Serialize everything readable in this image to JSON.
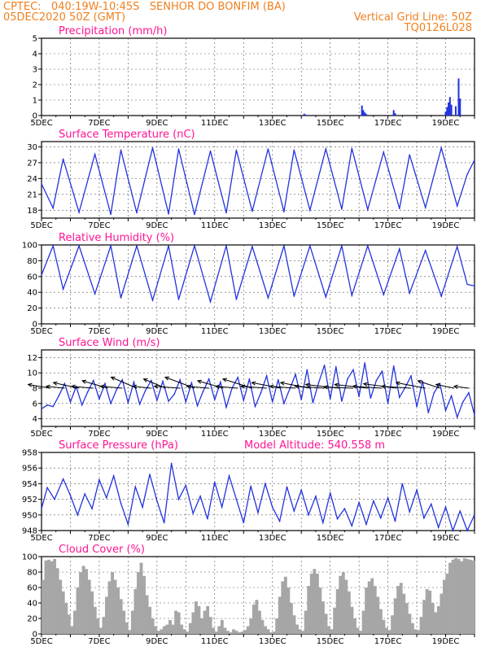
{
  "header": {
    "line1": "CPTEC:   040:19W-10:45S   SENHOR DO BONFIM (BA)",
    "line2_left": "05DEC2020 50Z (GMT)",
    "line2_right": "Vertical Grid Line: 50Z",
    "line3_right": "TQ0126L028"
  },
  "colors": {
    "header": "#f08020",
    "title": "#ff1493",
    "line": "#2233dd",
    "cloud": "#a6a6a6",
    "arrow": "#000000"
  },
  "chart_data": [
    {
      "type": "bar",
      "title": "Precipitation (mm/h)",
      "xlim": [
        5,
        20
      ],
      "ylim": [
        0,
        5
      ],
      "yticks": [
        0,
        1,
        2,
        3,
        4,
        5
      ],
      "xtick_labels": [
        "5DEC",
        "7DEC",
        "9DEC",
        "11DEC",
        "13DEC",
        "15DEC",
        "17DEC",
        "19DEC"
      ],
      "x": [
        5.2,
        6.5,
        8.0,
        10.5,
        12.0,
        14.1,
        14.15,
        16.1,
        16.15,
        16.2,
        16.25,
        17.2,
        17.25,
        19.0,
        19.05,
        19.1,
        19.15,
        19.2,
        19.35,
        19.45,
        19.5
      ],
      "values": [
        0.02,
        0.03,
        0.02,
        0.02,
        0.02,
        0.12,
        0.06,
        0.65,
        0.35,
        0.2,
        0.1,
        0.35,
        0.15,
        0.25,
        0.55,
        0.85,
        1.2,
        0.7,
        0.6,
        2.4,
        1.1
      ]
    },
    {
      "type": "line",
      "title": "Surface Temperature (nC)",
      "xlim": [
        5,
        20
      ],
      "ylim": [
        16.5,
        31
      ],
      "yticks": [
        18,
        21,
        24,
        27,
        30
      ],
      "xtick_labels": [
        "5DEC",
        "7DEC",
        "9DEC",
        "11DEC",
        "13DEC",
        "15DEC",
        "17DEC",
        "19DEC"
      ],
      "x": [
        5.0,
        5.4,
        5.75,
        6.3,
        6.85,
        7.4,
        7.75,
        8.3,
        8.85,
        9.4,
        9.75,
        10.3,
        10.85,
        11.4,
        11.75,
        12.3,
        12.85,
        13.4,
        13.75,
        14.3,
        14.85,
        15.4,
        15.75,
        16.3,
        16.85,
        17.4,
        17.75,
        18.3,
        18.85,
        19.4,
        19.75,
        20.0
      ],
      "values": [
        23.0,
        18.4,
        27.7,
        17.6,
        28.6,
        17.2,
        29.4,
        17.5,
        29.8,
        17.3,
        29.6,
        17.2,
        29.2,
        17.5,
        29.4,
        17.8,
        29.6,
        17.7,
        29.4,
        18.0,
        29.6,
        18.2,
        29.7,
        18.1,
        29.0,
        18.3,
        28.5,
        18.5,
        29.8,
        18.8,
        24.8,
        27.5
      ]
    },
    {
      "type": "line",
      "title": "Relative Humidity (%)",
      "xlim": [
        5,
        20
      ],
      "ylim": [
        0,
        100
      ],
      "yticks": [
        0,
        20,
        40,
        60,
        80,
        100
      ],
      "xtick_labels": [
        "5DEC",
        "7DEC",
        "9DEC",
        "11DEC",
        "13DEC",
        "15DEC",
        "17DEC",
        "19DEC"
      ],
      "x": [
        5.0,
        5.4,
        5.75,
        6.3,
        6.85,
        7.4,
        7.75,
        8.3,
        8.85,
        9.4,
        9.75,
        10.3,
        10.85,
        11.4,
        11.75,
        12.3,
        12.85,
        13.4,
        13.75,
        14.3,
        14.85,
        15.4,
        15.75,
        16.3,
        16.85,
        17.4,
        17.75,
        18.3,
        18.85,
        19.4,
        19.75,
        20.0
      ],
      "values": [
        62,
        99,
        44,
        99,
        38,
        99,
        33,
        99,
        30,
        99,
        31,
        99,
        28,
        99,
        31,
        98,
        33,
        99,
        35,
        99,
        34,
        99,
        36,
        99,
        37,
        95,
        39,
        93,
        35,
        98,
        50,
        48
      ]
    },
    {
      "type": "line",
      "title": "Surface Wind (m/s)",
      "xlim": [
        5,
        20
      ],
      "ylim": [
        3,
        13
      ],
      "yticks": [
        4,
        6,
        8,
        10,
        12
      ],
      "xtick_labels": [
        "5DEC",
        "7DEC",
        "9DEC",
        "11DEC",
        "13DEC",
        "15DEC",
        "17DEC",
        "19DEC"
      ],
      "x": [
        5.0,
        5.2,
        5.4,
        5.6,
        5.8,
        6.0,
        6.2,
        6.4,
        6.6,
        6.8,
        7.0,
        7.2,
        7.4,
        7.6,
        7.8,
        8.0,
        8.2,
        8.4,
        8.6,
        8.8,
        9.0,
        9.2,
        9.4,
        9.6,
        9.8,
        10.0,
        10.2,
        10.4,
        10.6,
        10.8,
        11.0,
        11.2,
        11.4,
        11.6,
        11.8,
        12.0,
        12.2,
        12.4,
        12.6,
        12.8,
        13.0,
        13.2,
        13.4,
        13.6,
        13.8,
        14.0,
        14.2,
        14.4,
        14.6,
        14.8,
        15.0,
        15.2,
        15.4,
        15.6,
        15.8,
        16.0,
        16.2,
        16.4,
        16.6,
        16.8,
        17.0,
        17.2,
        17.4,
        17.6,
        17.8,
        18.0,
        18.2,
        18.4,
        18.6,
        18.8,
        19.0,
        19.2,
        19.4,
        19.6,
        19.8,
        20.0
      ],
      "values": [
        5.3,
        5.8,
        5.6,
        7.0,
        8.6,
        6.2,
        8.2,
        5.8,
        7.5,
        9.0,
        6.6,
        8.6,
        6.0,
        7.8,
        9.1,
        6.1,
        8.8,
        5.9,
        7.7,
        9.0,
        6.4,
        8.9,
        6.3,
        7.2,
        9.1,
        6.2,
        8.7,
        5.7,
        7.6,
        9.2,
        6.5,
        8.8,
        5.5,
        8.0,
        9.4,
        6.4,
        9.2,
        5.6,
        7.4,
        9.6,
        6.2,
        9.1,
        6.0,
        7.9,
        9.8,
        6.5,
        10.4,
        6.1,
        8.7,
        11.0,
        6.6,
        10.8,
        6.3,
        9.2,
        10.4,
        6.9,
        11.3,
        6.7,
        9.0,
        10.2,
        6.0,
        10.9,
        6.8,
        8.1,
        9.6,
        5.6,
        8.9,
        4.8,
        7.4,
        8.6,
        5.1,
        7.0,
        4.2,
        6.2,
        7.4,
        4.5
      ],
      "vectors": {
        "x": [
          5.3,
          5.8,
          6.3,
          6.8,
          7.3,
          7.8,
          8.3,
          8.8,
          9.3,
          9.8,
          10.3,
          10.8,
          11.3,
          11.8,
          12.3,
          12.8,
          13.3,
          13.8,
          14.3,
          14.8,
          15.3,
          15.8,
          16.3,
          16.8,
          17.3,
          17.8,
          18.3,
          18.8,
          19.3,
          19.8
        ],
        "u": [
          -6,
          -5,
          -7,
          -6,
          -7,
          -6,
          -7,
          -5,
          -6,
          -7,
          -8,
          -6,
          -7,
          -6,
          -8,
          -7,
          -8,
          -7,
          -8,
          -8,
          -9,
          -8,
          -9,
          -8,
          -9,
          -8,
          -8,
          -6,
          -5,
          -4
        ],
        "v": [
          1,
          0.5,
          1.5,
          0.5,
          2,
          0.5,
          3,
          0.5,
          2.5,
          0.5,
          3,
          0.5,
          2,
          0.5,
          2.5,
          0.5,
          1.5,
          0.5,
          1.5,
          0.5,
          1,
          0.3,
          1,
          0.5,
          1.2,
          0.5,
          1.5,
          2,
          1,
          0.5
        ]
      }
    },
    {
      "type": "line",
      "title": "Surface Pressure (hPa)",
      "annotation": "Model Altitude: 540.558 m",
      "xlim": [
        5,
        20
      ],
      "ylim": [
        948,
        958
      ],
      "yticks": [
        948,
        950,
        952,
        954,
        956,
        958
      ],
      "xtick_labels": [
        "5DEC",
        "7DEC",
        "9DEC",
        "11DEC",
        "13DEC",
        "15DEC",
        "17DEC",
        "19DEC"
      ],
      "x": [
        5.0,
        5.2,
        5.45,
        5.75,
        6.0,
        6.25,
        6.5,
        6.75,
        7.0,
        7.25,
        7.5,
        7.75,
        8.0,
        8.25,
        8.5,
        8.75,
        9.0,
        9.25,
        9.5,
        9.75,
        10.0,
        10.25,
        10.5,
        10.75,
        11.0,
        11.25,
        11.5,
        11.75,
        12.0,
        12.25,
        12.5,
        12.75,
        13.0,
        13.25,
        13.5,
        13.75,
        14.0,
        14.25,
        14.5,
        14.75,
        15.0,
        15.25,
        15.5,
        15.75,
        16.0,
        16.25,
        16.5,
        16.75,
        17.0,
        17.25,
        17.5,
        17.75,
        18.0,
        18.25,
        18.5,
        18.75,
        19.0,
        19.25,
        19.5,
        19.75,
        20.0
      ],
      "values": [
        950.8,
        953.5,
        952.0,
        954.6,
        952.5,
        950.0,
        952.7,
        950.8,
        954.5,
        952.2,
        955.0,
        951.5,
        948.8,
        953.6,
        951.0,
        955.2,
        951.8,
        949.0,
        956.6,
        952.0,
        953.8,
        950.2,
        952.4,
        949.5,
        954.2,
        951.0,
        955.0,
        952.0,
        949.0,
        953.7,
        950.3,
        954.0,
        951.0,
        949.2,
        953.6,
        950.5,
        953.2,
        950.0,
        952.4,
        949.0,
        952.8,
        949.5,
        950.8,
        948.6,
        951.6,
        948.8,
        951.8,
        949.6,
        952.2,
        949.2,
        954.0,
        950.4,
        953.2,
        949.6,
        951.4,
        948.4,
        951.0,
        947.8,
        950.5,
        948.0,
        950.0
      ]
    },
    {
      "type": "bar",
      "title": "Cloud Cover (%)",
      "xlim": [
        5,
        20
      ],
      "ylim": [
        0,
        100
      ],
      "yticks": [
        0,
        20,
        40,
        60,
        80,
        100
      ],
      "xtick_labels": [
        "5DEC",
        "7DEC",
        "9DEC",
        "11DEC",
        "13DEC",
        "15DEC",
        "17DEC",
        "19DEC"
      ],
      "x": [
        5.0,
        5.1,
        5.2,
        5.3,
        5.4,
        5.5,
        5.6,
        5.7,
        5.8,
        5.9,
        6.0,
        6.1,
        6.2,
        6.3,
        6.4,
        6.5,
        6.6,
        6.7,
        6.8,
        6.9,
        7.0,
        7.1,
        7.2,
        7.3,
        7.4,
        7.5,
        7.6,
        7.7,
        7.8,
        7.9,
        8.0,
        8.1,
        8.2,
        8.3,
        8.4,
        8.5,
        8.6,
        8.7,
        8.8,
        8.9,
        9.0,
        9.1,
        9.2,
        9.3,
        9.4,
        9.5,
        9.6,
        9.7,
        9.8,
        9.9,
        10.0,
        10.1,
        10.2,
        10.3,
        10.4,
        10.5,
        10.6,
        10.7,
        10.8,
        10.9,
        11.0,
        11.1,
        11.2,
        11.3,
        11.4,
        11.5,
        11.6,
        11.7,
        11.8,
        11.9,
        12.0,
        12.1,
        12.2,
        12.3,
        12.4,
        12.5,
        12.6,
        12.7,
        12.8,
        12.9,
        13.0,
        13.1,
        13.2,
        13.3,
        13.4,
        13.5,
        13.6,
        13.7,
        13.8,
        13.9,
        14.0,
        14.1,
        14.2,
        14.3,
        14.4,
        14.5,
        14.6,
        14.7,
        14.8,
        14.9,
        15.0,
        15.1,
        15.2,
        15.3,
        15.4,
        15.5,
        15.6,
        15.7,
        15.8,
        15.9,
        16.0,
        16.1,
        16.2,
        16.3,
        16.4,
        16.5,
        16.6,
        16.7,
        16.8,
        16.9,
        17.0,
        17.1,
        17.2,
        17.3,
        17.4,
        17.5,
        17.6,
        17.7,
        17.8,
        17.9,
        18.0,
        18.1,
        18.2,
        18.3,
        18.4,
        18.5,
        18.6,
        18.7,
        18.8,
        18.9,
        19.0,
        19.1,
        19.2,
        19.3,
        19.4,
        19.5,
        19.6,
        19.7,
        19.8,
        19.9
      ],
      "values": [
        70,
        95,
        96,
        94,
        97,
        85,
        70,
        55,
        40,
        25,
        10,
        30,
        60,
        80,
        88,
        84,
        70,
        55,
        35,
        20,
        8,
        22,
        48,
        68,
        80,
        70,
        60,
        45,
        30,
        15,
        5,
        30,
        58,
        80,
        92,
        75,
        50,
        35,
        20,
        10,
        4,
        6,
        10,
        12,
        18,
        12,
        30,
        28,
        12,
        6,
        3,
        14,
        28,
        42,
        36,
        20,
        30,
        36,
        22,
        8,
        3,
        10,
        18,
        8,
        4,
        2,
        6,
        4,
        2,
        3,
        5,
        10,
        20,
        38,
        44,
        30,
        18,
        10,
        6,
        2,
        3,
        20,
        48,
        68,
        74,
        60,
        40,
        24,
        12,
        6,
        4,
        30,
        62,
        78,
        84,
        78,
        60,
        42,
        26,
        10,
        6,
        34,
        58,
        75,
        80,
        70,
        55,
        35,
        20,
        8,
        4,
        30,
        60,
        68,
        72,
        62,
        48,
        32,
        18,
        8,
        5,
        24,
        46,
        62,
        66,
        52,
        40,
        26,
        14,
        6,
        5,
        22,
        44,
        58,
        56,
        40,
        28,
        36,
        52,
        70,
        78,
        92,
        96,
        98,
        97,
        94,
        98,
        97,
        96,
        95
      ]
    }
  ]
}
